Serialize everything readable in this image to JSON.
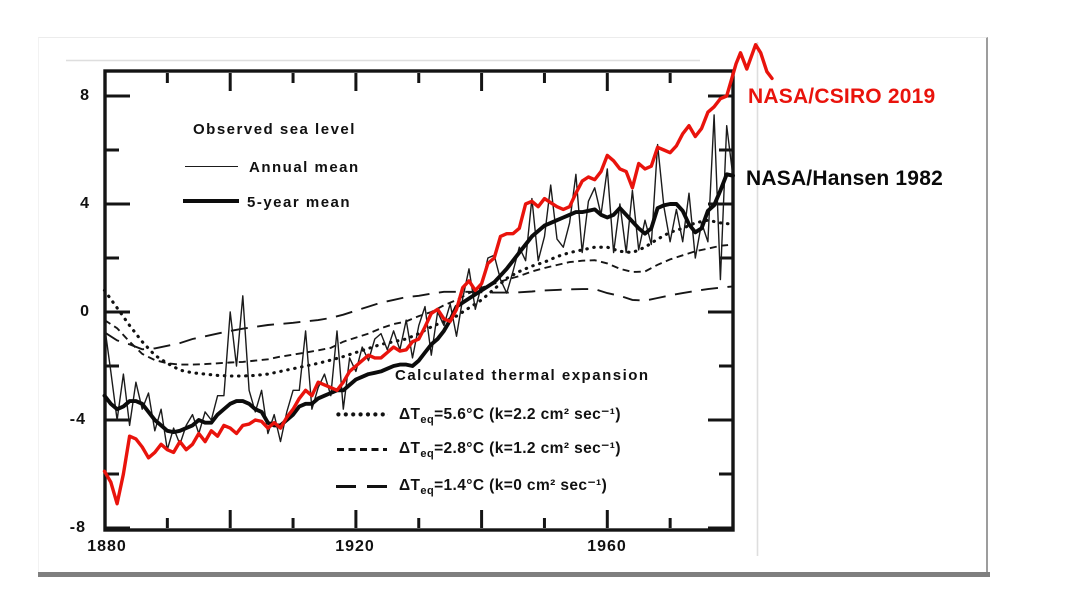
{
  "annotations": {
    "csiro": {
      "text": "NASA/CSIRO 2019",
      "color": "#e9130c"
    },
    "hansen": {
      "text": "NASA/Hansen 1982",
      "color": "#0a0a0a"
    }
  },
  "chart_data": {
    "type": "line",
    "title": "",
    "xlabel": "",
    "ylabel": "",
    "grid": false,
    "x_axis": {
      "range": [
        1880,
        1980
      ],
      "tick_labels": [
        "1880",
        "1920",
        "1960"
      ],
      "ticks_labeled_years": [
        1880,
        1920,
        1960
      ],
      "ticks_major": [
        1900,
        1920,
        1940,
        1960
      ],
      "ticks_minor": [
        1890,
        1910,
        1930,
        1950,
        1970
      ]
    },
    "y_axis": {
      "range": [
        -8.1,
        8.9
      ],
      "labels": [
        "8",
        "4",
        "0",
        "-4",
        "-8"
      ],
      "ticks_major": [
        8,
        4,
        0,
        -4,
        -8
      ],
      "ticks_minor": [
        6,
        2,
        -2,
        -6
      ]
    },
    "legend1": {
      "title": "Observed sea level",
      "items": [
        {
          "label": "Annual mean",
          "style": "thin-solid"
        },
        {
          "label": "5-year mean",
          "style": "thick-solid"
        }
      ]
    },
    "legend2": {
      "title": "Calculated thermal expansion",
      "rows": [
        {
          "t": "ΔT",
          "sub": "eq",
          "rest": "=5.6°C (k=2.2 cm² sec⁻¹)",
          "style": "dotted"
        },
        {
          "t": "ΔT",
          "sub": "eq",
          "rest": "=2.8°C (k=1.2 cm² sec⁻¹)",
          "style": "short-dash"
        },
        {
          "t": "ΔT",
          "sub": "eq",
          "rest": "=1.4°C (k=0 cm² sec⁻¹)",
          "style": "long-dash"
        }
      ]
    },
    "series": [
      {
        "name": "Calculated thermal expansion ΔTeq=1.4°C (k=0)",
        "style": "longdash",
        "start": 1880,
        "step": 2,
        "values": [
          -0.75,
          -1.05,
          -1.2,
          -1.38,
          -1.35,
          -1.25,
          -1.15,
          -1.0,
          -0.9,
          -0.8,
          -0.7,
          -0.62,
          -0.55,
          -0.48,
          -0.44,
          -0.4,
          -0.35,
          -0.3,
          -0.22,
          -0.1,
          0.05,
          0.2,
          0.35,
          0.45,
          0.55,
          0.6,
          0.68,
          0.75,
          0.75,
          0.75,
          0.73,
          0.72,
          0.72,
          0.73,
          0.76,
          0.8,
          0.82,
          0.84,
          0.85,
          0.85,
          0.7,
          0.6,
          0.45,
          0.42,
          0.52,
          0.62,
          0.7,
          0.78,
          0.85,
          0.9,
          0.95
        ]
      },
      {
        "name": "Calculated thermal expansion ΔTeq=2.8°C (k=1.2)",
        "style": "shortdash",
        "start": 1880,
        "step": 2,
        "values": [
          -0.3,
          -0.6,
          -1.1,
          -1.55,
          -1.78,
          -1.9,
          -1.95,
          -1.95,
          -1.93,
          -1.9,
          -1.87,
          -1.85,
          -1.8,
          -1.75,
          -1.65,
          -1.58,
          -1.5,
          -1.42,
          -1.33,
          -1.1,
          -0.95,
          -0.8,
          -0.6,
          -0.45,
          -0.35,
          -0.15,
          0.0,
          0.25,
          0.45,
          0.7,
          0.9,
          1.05,
          1.2,
          1.33,
          1.5,
          1.63,
          1.74,
          1.85,
          1.9,
          1.92,
          1.8,
          1.6,
          1.48,
          1.5,
          1.75,
          1.95,
          2.1,
          2.25,
          2.35,
          2.45,
          2.5
        ]
      },
      {
        "name": "Calculated thermal expansion ΔTeq=5.6°C (k=2.2)",
        "style": "dotted",
        "start": 1880,
        "step": 2,
        "values": [
          0.8,
          0.15,
          -0.5,
          -1.1,
          -1.6,
          -1.9,
          -2.15,
          -2.25,
          -2.3,
          -2.35,
          -2.37,
          -2.37,
          -2.35,
          -2.3,
          -2.2,
          -2.1,
          -2.0,
          -1.9,
          -1.78,
          -1.65,
          -1.5,
          -1.35,
          -1.2,
          -1.1,
          -1.0,
          -0.8,
          -0.55,
          -0.35,
          -0.15,
          0.15,
          0.45,
          0.85,
          1.25,
          1.5,
          1.7,
          1.85,
          2.05,
          2.2,
          2.3,
          2.4,
          2.4,
          2.25,
          2.2,
          2.4,
          2.7,
          2.95,
          3.1,
          3.3,
          3.4,
          3.3,
          3.25
        ]
      },
      {
        "name": "Observed sea level annual mean",
        "style": "thin",
        "start": 1880,
        "step": 1,
        "values": [
          -0.5,
          -2.2,
          -4.0,
          -2.3,
          -4.2,
          -2.6,
          -3.6,
          -3.0,
          -4.4,
          -3.6,
          -5.1,
          -4.3,
          -4.9,
          -4.2,
          -3.8,
          -4.5,
          -3.7,
          -4.0,
          -3.1,
          -3.1,
          0.0,
          -2.0,
          0.6,
          -2.9,
          -3.7,
          -2.9,
          -4.5,
          -3.8,
          -4.8,
          -3.7,
          -2.9,
          -2.9,
          -0.7,
          -3.6,
          -2.8,
          -2.3,
          -3.1,
          -0.7,
          -3.6,
          -1.7,
          -2.2,
          -1.3,
          -1.8,
          -1.0,
          -0.8,
          -1.4,
          -0.7,
          -1.4,
          -0.3,
          -1.7,
          -0.5,
          0.2,
          -1.6,
          0.0,
          -0.5,
          0.3,
          -0.9,
          0.5,
          1.6,
          0.1,
          1.0,
          2.0,
          2.1,
          1.2,
          0.7,
          1.5,
          2.4,
          1.9,
          4.2,
          1.9,
          2.8,
          4.7,
          2.7,
          2.4,
          3.3,
          5.1,
          2.2,
          4.1,
          4.6,
          3.6,
          5.3,
          2.2,
          4.0,
          2.2,
          4.5,
          2.3,
          3.4,
          2.5,
          6.2,
          3.9,
          2.6,
          3.8,
          2.6,
          4.4,
          2.0,
          3.3,
          2.6,
          7.3,
          1.2,
          6.9,
          5.0
        ]
      },
      {
        "name": "Observed sea level 5-year mean",
        "style": "thick",
        "start": 1880,
        "step": 1,
        "values": [
          -3.1,
          -3.4,
          -3.6,
          -3.5,
          -3.3,
          -3.3,
          -3.4,
          -3.7,
          -4.0,
          -4.2,
          -4.4,
          -4.45,
          -4.4,
          -4.3,
          -4.2,
          -4.0,
          -4.1,
          -4.1,
          -3.8,
          -3.6,
          -3.4,
          -3.3,
          -3.3,
          -3.4,
          -3.6,
          -3.7,
          -4.1,
          -4.2,
          -4.2,
          -4.0,
          -3.8,
          -3.5,
          -3.4,
          -3.4,
          -3.2,
          -3.1,
          -3.0,
          -2.9,
          -2.9,
          -2.7,
          -2.5,
          -2.4,
          -2.3,
          -2.25,
          -2.2,
          -2.1,
          -2.0,
          -1.95,
          -1.95,
          -2.0,
          -1.8,
          -1.5,
          -1.2,
          -1.0,
          -0.7,
          -0.3,
          0.2,
          0.35,
          0.5,
          0.65,
          0.8,
          0.95,
          1.1,
          1.35,
          1.6,
          1.9,
          2.2,
          2.5,
          2.8,
          3.0,
          3.2,
          3.3,
          3.4,
          3.5,
          3.6,
          3.7,
          3.7,
          3.75,
          3.8,
          3.6,
          3.5,
          3.6,
          3.85,
          3.6,
          3.35,
          3.1,
          2.9,
          3.1,
          3.85,
          3.95,
          4.0,
          4.0,
          3.75,
          3.25,
          2.95,
          3.1,
          3.75,
          3.95,
          4.5,
          5.1,
          5.05
        ]
      },
      {
        "name": "NASA/CSIRO 2019 sea level",
        "style": "red",
        "start": 1880,
        "step": 1,
        "values": [
          -5.9,
          -6.3,
          -7.1,
          -6.0,
          -4.6,
          -4.7,
          -5.0,
          -5.4,
          -5.2,
          -4.9,
          -5.1,
          -5.2,
          -4.8,
          -5.1,
          -4.9,
          -4.5,
          -4.8,
          -4.4,
          -4.6,
          -4.2,
          -4.3,
          -4.5,
          -4.2,
          -4.15,
          -4.0,
          -4.05,
          -4.3,
          -4.1,
          -4.3,
          -3.9,
          -3.6,
          -3.2,
          -2.9,
          -3.1,
          -2.6,
          -2.7,
          -2.8,
          -2.9,
          -2.6,
          -2.2,
          -2.0,
          -1.8,
          -1.6,
          -1.7,
          -1.7,
          -1.5,
          -1.3,
          -1.45,
          -1.4,
          -1.1,
          -1.0,
          -0.55,
          -0.05,
          0.1,
          -0.25,
          -0.35,
          0.1,
          0.9,
          1.15,
          0.8,
          1.05,
          1.8,
          2.0,
          2.8,
          2.9,
          2.9,
          3.1,
          4.0,
          4.1,
          3.9,
          4.2,
          4.05,
          3.9,
          3.8,
          3.9,
          4.4,
          4.85,
          5.0,
          4.9,
          5.2,
          5.8,
          5.6,
          5.3,
          5.2,
          4.6,
          5.5,
          5.3,
          5.4,
          6.1,
          6.0,
          5.9,
          6.15,
          6.6,
          6.9,
          6.5,
          6.8,
          7.4,
          7.6,
          7.9,
          8.0,
          8.8
        ],
        "extra_points": [
          [
            1980.5,
            9.2
          ],
          [
            1981.2,
            9.6
          ],
          [
            1982.2,
            9.0
          ],
          [
            1983.6,
            9.9
          ],
          [
            1984.4,
            9.6
          ],
          [
            1985.4,
            8.9
          ],
          [
            1986.2,
            8.65
          ]
        ]
      }
    ]
  }
}
